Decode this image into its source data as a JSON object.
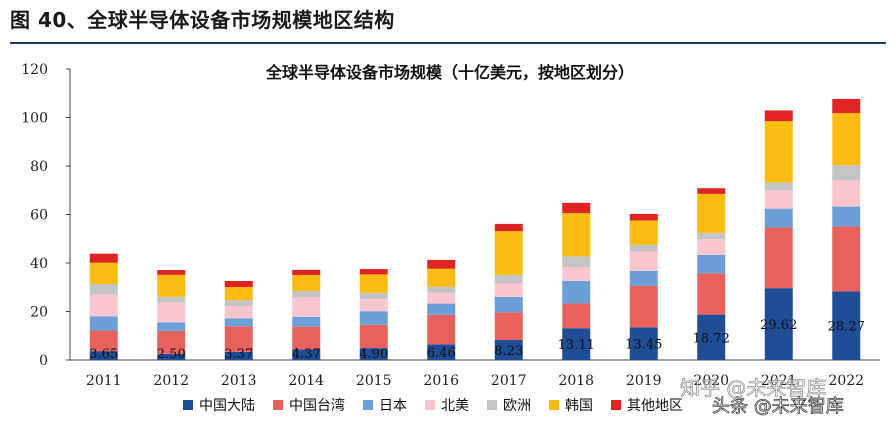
{
  "figure_title": "图 40、全球半导体设备市场规模地区结构",
  "watermarks": [
    "知乎 @未来智库",
    "头条 @未来智库"
  ],
  "chart_data": {
    "type": "bar",
    "stacked": true,
    "title": "全球半导体设备市场规模（十亿美元，按地区划分）",
    "xlabel": "",
    "ylabel": "",
    "ylim": [
      0,
      120
    ],
    "yticks": [
      0,
      20,
      40,
      60,
      80,
      100,
      120
    ],
    "grid": false,
    "legend_position": "bottom",
    "categories": [
      "2011",
      "2012",
      "2013",
      "2014",
      "2015",
      "2016",
      "2017",
      "2018",
      "2019",
      "2020",
      "2021",
      "2022"
    ],
    "series": [
      {
        "name": "中国大陆",
        "color": "#1f4e96",
        "values": [
          3.65,
          2.5,
          3.37,
          4.37,
          4.9,
          6.46,
          8.23,
          13.11,
          13.45,
          18.72,
          29.62,
          28.27
        ]
      },
      {
        "name": "中国台湾",
        "color": "#e8625d",
        "values": [
          8.5,
          9.5,
          10.5,
          9.4,
          9.6,
          12.2,
          11.4,
          10.2,
          17.1,
          17.0,
          25.0,
          26.8
        ]
      },
      {
        "name": "日本",
        "color": "#6a9fd8",
        "values": [
          5.8,
          3.5,
          3.3,
          4.0,
          5.6,
          4.6,
          6.4,
          9.3,
          6.2,
          7.6,
          7.8,
          8.2
        ]
      },
      {
        "name": "北美",
        "color": "#f7c6cf",
        "values": [
          9.0,
          8.1,
          5.0,
          8.2,
          5.1,
          4.5,
          5.6,
          5.7,
          8.2,
          6.5,
          7.6,
          10.8
        ]
      },
      {
        "name": "欧洲",
        "color": "#c4c4c4",
        "values": [
          4.4,
          2.5,
          2.5,
          2.5,
          2.5,
          2.4,
          3.5,
          4.4,
          2.6,
          2.6,
          3.2,
          6.3
        ]
      },
      {
        "name": "韩国",
        "color": "#fbbb10",
        "values": [
          8.8,
          9.0,
          5.4,
          6.6,
          7.6,
          7.5,
          18.0,
          17.9,
          10.0,
          16.1,
          25.3,
          21.5
        ]
      },
      {
        "name": "其他地区",
        "color": "#e02424",
        "values": [
          3.7,
          2.0,
          2.5,
          2.1,
          2.2,
          3.6,
          3.0,
          4.2,
          2.7,
          2.3,
          4.4,
          5.8
        ]
      }
    ],
    "data_labels": [
      "3.65",
      "2.50",
      "3.37",
      "4.37",
      "4.90",
      "6.46",
      "8.23",
      "13.11",
      "13.45",
      "18.72",
      "29.62",
      "28.27"
    ]
  }
}
